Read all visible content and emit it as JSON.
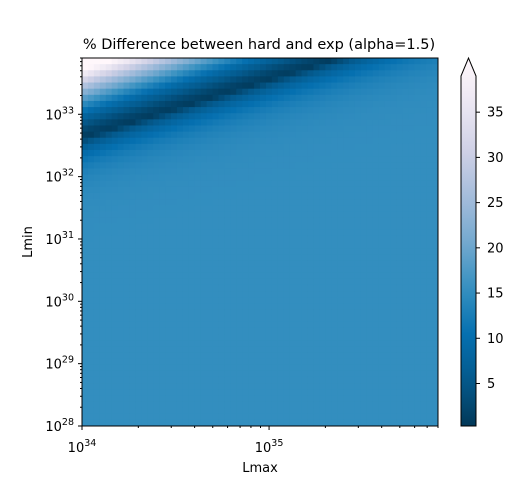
{
  "chart_data": {
    "type": "heatmap",
    "title": "% Difference between hard and exp (alpha=1.5)",
    "xlabel": "Lmax",
    "ylabel": "Lmin",
    "x_scale": "log",
    "y_scale": "log",
    "xlim": [
      1e+34,
      8e+35
    ],
    "ylim": [
      1e+28,
      8e+33
    ],
    "x_ticks": [
      {
        "value": 1e+34,
        "base": "10",
        "exp": "34"
      },
      {
        "value": 1e+35,
        "base": "10",
        "exp": "35"
      }
    ],
    "y_ticks": [
      {
        "value": 1e+28,
        "base": "10",
        "exp": "28"
      },
      {
        "value": 1e+29,
        "base": "10",
        "exp": "29"
      },
      {
        "value": 1e+30,
        "base": "10",
        "exp": "30"
      },
      {
        "value": 1e+31,
        "base": "10",
        "exp": "31"
      },
      {
        "value": 1e+32,
        "base": "10",
        "exp": "32"
      },
      {
        "value": 1e+33,
        "base": "10",
        "exp": "33"
      }
    ],
    "colorbar": {
      "colormap": "PuBu_r",
      "range": [
        0.3,
        39
      ],
      "extend": "max",
      "ticks": [
        "5",
        "10",
        "15",
        "20",
        "25",
        "30",
        "35"
      ],
      "tick_values": [
        5,
        10,
        15,
        20,
        25,
        30,
        35
      ]
    },
    "field": {
      "background_value": 14.5,
      "min_ridge": [
        {
          "log_lmax": 34.0,
          "log_lmin": 32.62
        },
        {
          "log_lmax": 35.3,
          "log_lmin": 33.83
        }
      ],
      "max_corner": {
        "log_lmax": 34.0,
        "log_lmin": 33.9,
        "value": 39
      }
    },
    "colors": {
      "high": "#fff7fb",
      "mid": "#3690c0",
      "low": "#023858"
    }
  }
}
